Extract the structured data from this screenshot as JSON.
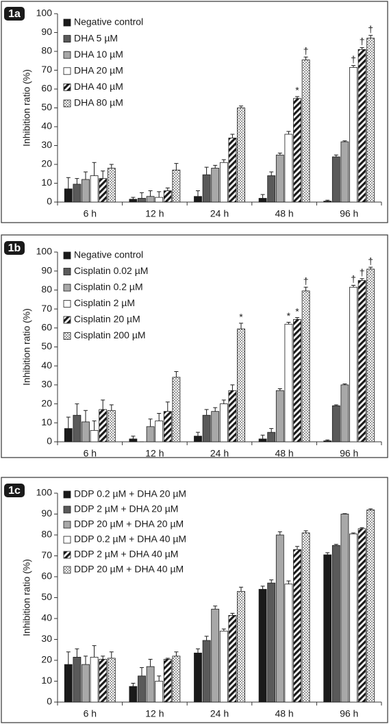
{
  "chart_data": [
    {
      "type": "bar",
      "panel_label": "1a",
      "ylabel": "Inhibition ratio (%)",
      "categories": [
        "6 h",
        "12 h",
        "24 h",
        "48 h",
        "96 h"
      ],
      "ylim": [
        0,
        100
      ],
      "yticks": [
        0,
        10,
        20,
        30,
        40,
        50,
        60,
        70,
        80,
        90,
        100
      ],
      "series": [
        {
          "name": "Negative control",
          "color": "#1a1a1a",
          "pattern": "solid",
          "values": [
            7,
            1.5,
            3,
            2,
            0.5
          ],
          "errors": [
            6,
            1,
            3,
            2,
            0.5
          ],
          "markers": [
            null,
            null,
            null,
            null,
            null
          ]
        },
        {
          "name": "DHA 5 µM",
          "color": "#5a5a5a",
          "pattern": "solid",
          "values": [
            9.5,
            2,
            14.5,
            14,
            24
          ],
          "errors": [
            3,
            3,
            4,
            2,
            1
          ],
          "markers": [
            null,
            null,
            null,
            null,
            null
          ]
        },
        {
          "name": "DHA 10 µM",
          "color": "#a8a8a8",
          "pattern": "solid",
          "values": [
            12,
            3,
            18,
            25,
            32
          ],
          "errors": [
            4,
            3,
            1.5,
            1,
            0.5
          ],
          "markers": [
            null,
            null,
            null,
            null,
            null
          ]
        },
        {
          "name": "DHA 20 µM",
          "color": "#ffffff",
          "pattern": "solid",
          "values": [
            14,
            2.5,
            21,
            36,
            71.5
          ],
          "errors": [
            7,
            3,
            1.5,
            1.5,
            1
          ],
          "markers": [
            null,
            null,
            null,
            null,
            "†"
          ]
        },
        {
          "name": "DHA 40 µM",
          "color": "#1a1a1a",
          "pattern": "stripes",
          "values": [
            12.5,
            6,
            34,
            55,
            81
          ],
          "errors": [
            4,
            1.5,
            2,
            1,
            1
          ],
          "markers": [
            null,
            null,
            null,
            "*",
            "†"
          ]
        },
        {
          "name": "DHA 80 µM",
          "color": "#1a1a1a",
          "pattern": "dots",
          "values": [
            18,
            17,
            50,
            75.5,
            87
          ],
          "errors": [
            2,
            3.5,
            1,
            1.5,
            1.5
          ],
          "markers": [
            null,
            null,
            null,
            "†",
            "†"
          ]
        }
      ]
    },
    {
      "type": "bar",
      "panel_label": "1b",
      "ylabel": "Inhibition ratio (%)",
      "categories": [
        "6 h",
        "12 h",
        "24 h",
        "48 h",
        "96 h"
      ],
      "ylim": [
        0,
        100
      ],
      "yticks": [
        0,
        10,
        20,
        30,
        40,
        50,
        60,
        70,
        80,
        90,
        100
      ],
      "series": [
        {
          "name": "Negative control",
          "color": "#1a1a1a",
          "pattern": "solid",
          "values": [
            7,
            1.5,
            3,
            1.5,
            0.5
          ],
          "errors": [
            6,
            1.5,
            2,
            2,
            0.5
          ],
          "markers": [
            null,
            null,
            null,
            null,
            null
          ]
        },
        {
          "name": "Cisplatin 0.02 µM",
          "color": "#5a5a5a",
          "pattern": "solid",
          "values": [
            14,
            0,
            14,
            5,
            19
          ],
          "errors": [
            6,
            0,
            3,
            2,
            0.5
          ],
          "markers": [
            null,
            null,
            null,
            null,
            null
          ]
        },
        {
          "name": "Cisplatin 0.2 µM",
          "color": "#a8a8a8",
          "pattern": "solid",
          "values": [
            10.5,
            8,
            16,
            27,
            30
          ],
          "errors": [
            6,
            4,
            2,
            1,
            0.5
          ],
          "markers": [
            null,
            null,
            null,
            null,
            null
          ]
        },
        {
          "name": "Cisplatin 2 µM",
          "color": "#ffffff",
          "pattern": "solid",
          "values": [
            6,
            11,
            20,
            62,
            81.5
          ],
          "errors": [
            5,
            4,
            2,
            1,
            1
          ],
          "markers": [
            null,
            null,
            null,
            "*",
            "†"
          ]
        },
        {
          "name": "Cisplatin 20 µM",
          "color": "#1a1a1a",
          "pattern": "stripes",
          "values": [
            17,
            16,
            27,
            64.5,
            85
          ],
          "errors": [
            5,
            5,
            3,
            1,
            1
          ],
          "markers": [
            null,
            null,
            null,
            "*",
            "†"
          ]
        },
        {
          "name": "Cisplatin 200 µM",
          "color": "#1a1a1a",
          "pattern": "dots",
          "values": [
            16.5,
            34,
            59.5,
            79.5,
            91
          ],
          "errors": [
            3,
            3,
            3,
            2,
            1
          ],
          "markers": [
            null,
            null,
            "*",
            "†",
            "†"
          ]
        }
      ]
    },
    {
      "type": "bar",
      "panel_label": "1c",
      "ylabel": "Inhibition ratio (%)",
      "categories": [
        "6 h",
        "12 h",
        "24 h",
        "48 h",
        "96 h"
      ],
      "ylim": [
        0,
        100
      ],
      "yticks": [
        0,
        10,
        20,
        30,
        40,
        50,
        60,
        70,
        80,
        90,
        100
      ],
      "series": [
        {
          "name": "DDP 0.2 µM + DHA  20 µM",
          "color": "#1a1a1a",
          "pattern": "solid",
          "values": [
            18,
            7.5,
            23.5,
            54,
            70.5
          ],
          "errors": [
            6,
            1.5,
            2,
            1.5,
            1
          ],
          "markers": [
            null,
            null,
            null,
            null,
            null
          ]
        },
        {
          "name": "DDP 2 µM + DHA  20 µM",
          "color": "#5a5a5a",
          "pattern": "solid",
          "values": [
            21.5,
            12.5,
            29.5,
            57,
            75
          ],
          "errors": [
            4,
            4,
            2,
            1.5,
            0.5
          ],
          "markers": [
            null,
            null,
            null,
            null,
            null
          ]
        },
        {
          "name": "DDP 20 µM + DHA  20 µM",
          "color": "#a8a8a8",
          "pattern": "solid",
          "values": [
            18,
            17,
            44.5,
            80,
            90
          ],
          "errors": [
            4,
            3.5,
            1.5,
            1.5,
            0.2
          ],
          "markers": [
            null,
            null,
            null,
            null,
            null
          ]
        },
        {
          "name": "DDP 0.2 µM + DHA  40 µM",
          "color": "#ffffff",
          "pattern": "solid",
          "values": [
            21.5,
            10,
            34,
            56.5,
            80.5
          ],
          "errors": [
            5.5,
            2.5,
            1,
            1.5,
            0.5
          ],
          "markers": [
            null,
            null,
            null,
            null,
            null
          ]
        },
        {
          "name": "DDP 2 µM + DHA  40 µM",
          "color": "#1a1a1a",
          "pattern": "stripes",
          "values": [
            20.5,
            20.5,
            41.5,
            73,
            83
          ],
          "errors": [
            1.5,
            0.5,
            1,
            1.5,
            0.5
          ],
          "markers": [
            null,
            null,
            null,
            null,
            null
          ]
        },
        {
          "name": "DDP 20 µM + DHA  40 µM",
          "color": "#1a1a1a",
          "pattern": "dots",
          "values": [
            21,
            22,
            53,
            81,
            92
          ],
          "errors": [
            3,
            2,
            2,
            1,
            0.5
          ],
          "markers": [
            null,
            null,
            null,
            null,
            null
          ]
        }
      ]
    }
  ]
}
